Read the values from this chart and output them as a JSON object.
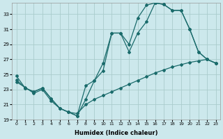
{
  "xlabel": "Humidex (Indice chaleur)",
  "background_color": "#cce8ec",
  "grid_color": "#aacccc",
  "line_color": "#1a6b6b",
  "xlim": [
    -0.5,
    23.5
  ],
  "ylim": [
    19,
    34.5
  ],
  "xticks": [
    0,
    1,
    2,
    3,
    4,
    5,
    6,
    7,
    8,
    9,
    10,
    11,
    12,
    13,
    14,
    15,
    16,
    17,
    18,
    19,
    20,
    21,
    22,
    23
  ],
  "yticks": [
    19,
    21,
    23,
    25,
    27,
    29,
    31,
    33
  ],
  "line1_x": [
    0,
    1,
    2,
    3,
    4,
    5,
    6,
    7,
    8,
    9,
    10,
    11,
    12,
    13,
    14,
    15,
    16,
    17,
    18,
    19,
    20,
    21,
    22,
    23
  ],
  "line1_y": [
    24.8,
    23.2,
    22.7,
    23.2,
    21.8,
    20.5,
    20.0,
    19.5,
    23.5,
    24.2,
    25.5,
    30.5,
    30.5,
    29.0,
    32.5,
    34.2,
    34.5,
    34.3,
    33.5,
    33.5,
    31.0,
    28.0,
    27.0,
    26.5
  ],
  "line2_x": [
    0,
    1,
    2,
    3,
    4,
    5,
    6,
    7,
    8,
    9,
    10,
    11,
    12,
    13,
    14,
    15,
    16,
    17,
    18,
    19,
    20,
    21,
    22,
    23
  ],
  "line2_y": [
    24.3,
    23.2,
    22.7,
    23.2,
    21.8,
    20.5,
    20.0,
    19.5,
    21.7,
    24.2,
    26.5,
    30.5,
    30.5,
    28.0,
    30.5,
    32.0,
    34.5,
    34.3,
    33.5,
    33.5,
    31.0,
    28.0,
    27.0,
    26.5
  ],
  "line3_x": [
    0,
    1,
    2,
    3,
    4,
    5,
    6,
    7,
    8,
    9,
    10,
    11,
    12,
    13,
    14,
    15,
    16,
    17,
    18,
    19,
    20,
    21,
    22,
    23
  ],
  "line3_y": [
    24.0,
    23.3,
    22.5,
    23.0,
    21.5,
    20.5,
    20.0,
    19.8,
    21.0,
    21.7,
    22.2,
    22.7,
    23.2,
    23.7,
    24.2,
    24.7,
    25.2,
    25.6,
    26.0,
    26.3,
    26.6,
    26.8,
    27.0,
    26.5
  ],
  "xtick_fontsize": 4.5,
  "ytick_fontsize": 5.0,
  "xlabel_fontsize": 6.0
}
